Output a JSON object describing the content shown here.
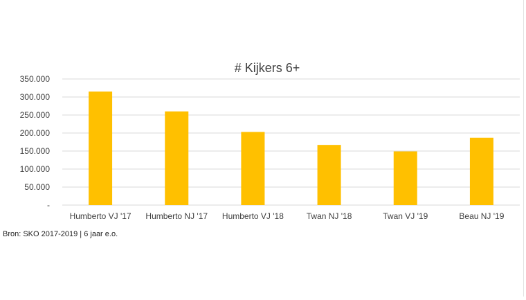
{
  "chart_data": {
    "type": "bar",
    "title": "# Kijkers 6+",
    "categories": [
      "Humberto VJ '17",
      "Humberto NJ '17",
      "Humberto VJ '18",
      "Twan NJ '18",
      "Twan VJ '19",
      "Beau NJ '19"
    ],
    "values": [
      315000,
      260000,
      203000,
      167000,
      149000,
      187000
    ],
    "ylim": [
      0,
      350000
    ],
    "yticks": [
      0,
      50000,
      100000,
      150000,
      200000,
      250000,
      300000,
      350000
    ],
    "ytick_labels": [
      "-",
      "50.000",
      "100.000",
      "150.000",
      "200.000",
      "250.000",
      "300.000",
      "350.000"
    ],
    "xlabel": "",
    "ylabel": "",
    "grid": true,
    "legend": "none",
    "bar_color": "#FFC000",
    "grid_color": "#D9D9D9"
  },
  "footer": {
    "source": "Bron: SKO 2017-2019 | 6 jaar e.o."
  }
}
